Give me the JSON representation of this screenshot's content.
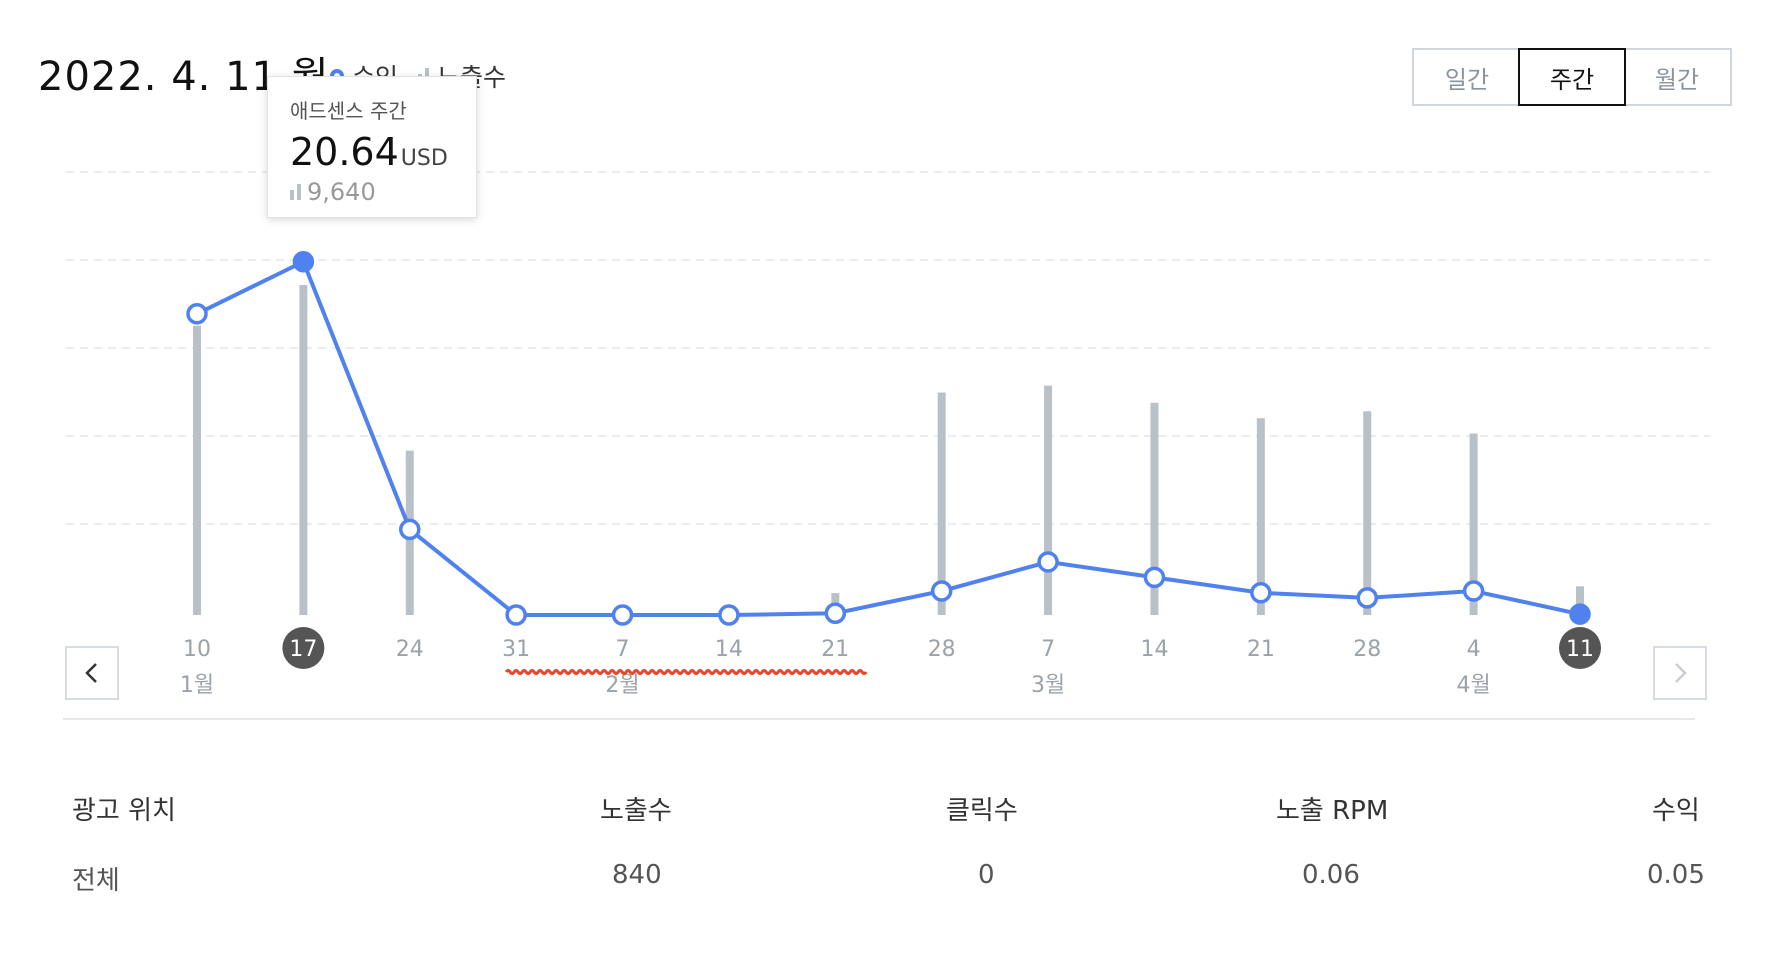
{
  "header": {
    "date": "2022. 4. 11 월",
    "legend": {
      "revenue": "수익",
      "impressions": "노출수"
    }
  },
  "period": {
    "daily": "일간",
    "weekly": "주간",
    "monthly": "월간",
    "selected": "weekly"
  },
  "tooltip": {
    "title": "애드센스 주간",
    "value": "20.64",
    "unit": "USD",
    "impressions": "9,640"
  },
  "colors": {
    "line": "#4f81ef",
    "bar": "#b8c0c8",
    "badge": "#555555",
    "underline": "#e8452c"
  },
  "chart_data": {
    "type": "line",
    "x": [
      "10",
      "17",
      "24",
      "31",
      "7",
      "14",
      "21",
      "28",
      "7",
      "14",
      "21",
      "28",
      "4",
      "11"
    ],
    "month_labels": [
      {
        "label": "1월",
        "at": 0
      },
      {
        "label": "2월",
        "at": 4
      },
      {
        "label": "3월",
        "at": 8
      },
      {
        "label": "4월",
        "at": 12
      }
    ],
    "highlighted": [
      1,
      13
    ],
    "series": [
      {
        "name": "수익",
        "values": [
          17.6,
          20.64,
          5.0,
          0,
          0,
          0,
          0.1,
          1.4,
          3.1,
          2.2,
          1.3,
          1.0,
          1.4,
          0.05
        ]
      },
      {
        "name": "노출수",
        "values": [
          8450,
          9640,
          4800,
          0,
          0,
          0,
          640,
          6500,
          6700,
          6200,
          5750,
          5950,
          5300,
          840
        ]
      }
    ],
    "grid": true
  },
  "summary": {
    "columns": [
      "광고 위치",
      "노출수",
      "클릭수",
      "노출 RPM",
      "수익"
    ],
    "row": [
      "전체",
      "840",
      "0",
      "0.06",
      "0.05"
    ]
  }
}
